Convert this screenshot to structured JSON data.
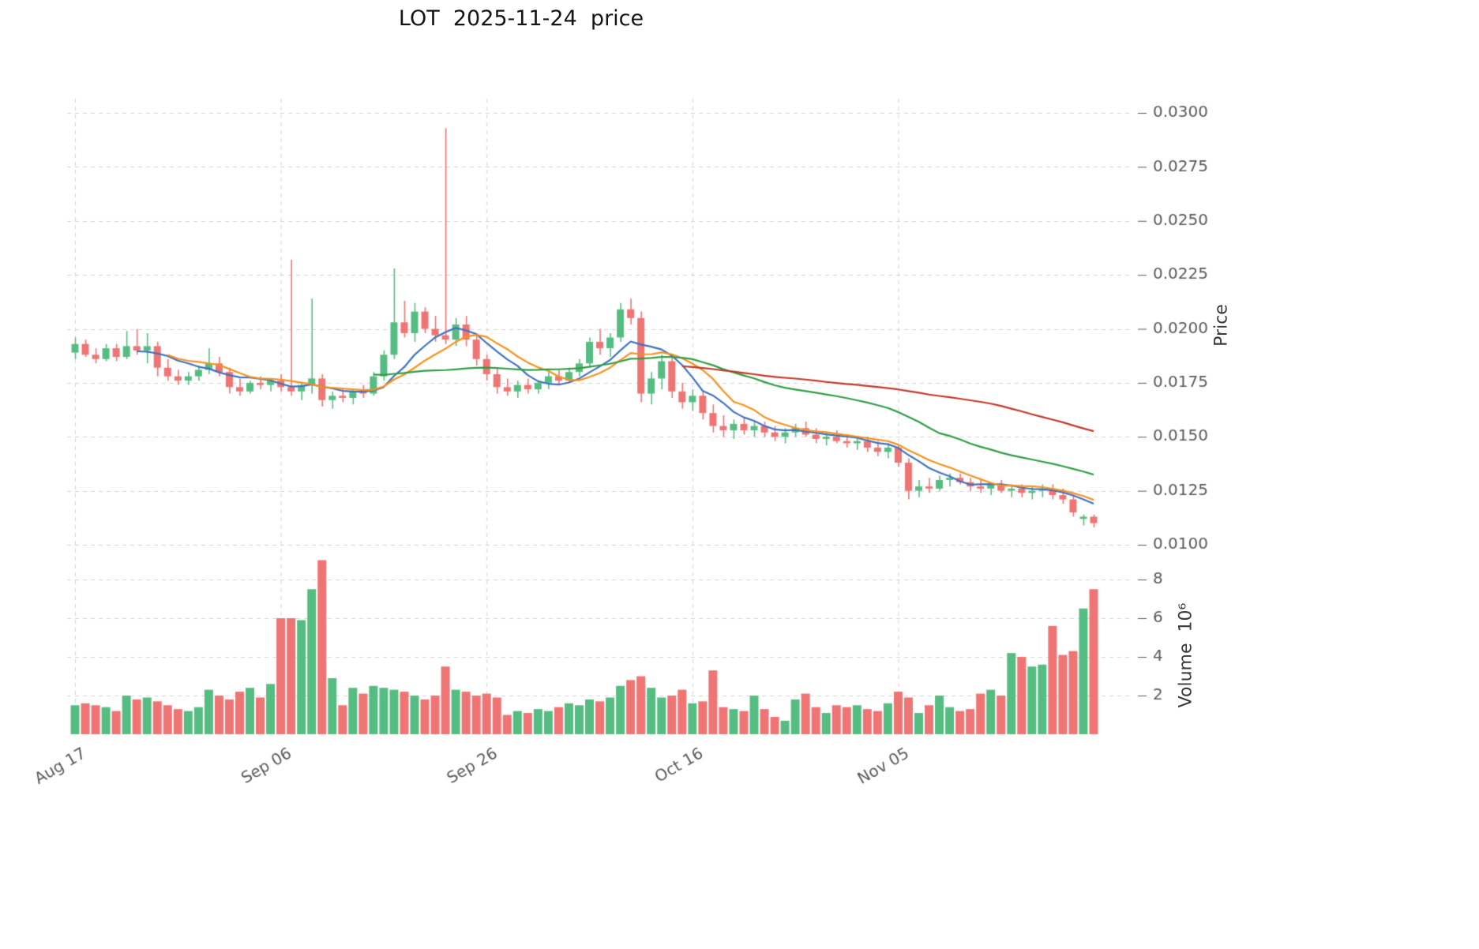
{
  "title": "LOT  2025-11-24  price",
  "axes": {
    "price_label": "Price",
    "volume_label": "Volume  10⁶"
  },
  "chart_data": {
    "type": "candlestick+volume",
    "title": "LOT  2025-11-24  price",
    "ylabel": "Price",
    "volume_label": "Volume 10^6",
    "ylim": [
      0.01,
      0.03
    ],
    "price_ticks": [
      0.01,
      0.0125,
      0.015,
      0.0175,
      0.02,
      0.0225,
      0.025,
      0.0275,
      0.03
    ],
    "volume_ticks": [
      2,
      4,
      6,
      8
    ],
    "volume_unit": 1000000,
    "grid": "dashed",
    "x_ticks": [
      {
        "index": 0,
        "label": "Aug 17"
      },
      {
        "index": 20,
        "label": "Sep 06"
      },
      {
        "index": 40,
        "label": "Sep 26"
      },
      {
        "index": 60,
        "label": "Oct 16"
      },
      {
        "index": 80,
        "label": "Nov 05"
      }
    ],
    "colors": {
      "up": "#56bd82",
      "down": "#ef7474",
      "ma_fast": "#3f72c0",
      "ma_mid": "#f5921e",
      "ma_slow": "#2f9e44",
      "ma_long": "#c0392b",
      "grid": "#d3d3d3",
      "tick_text": "#595959",
      "title_text": "#151515"
    },
    "moving_averages": [
      {
        "window": 7,
        "color_key": "ma_fast"
      },
      {
        "window": 10,
        "color_key": "ma_mid"
      },
      {
        "window": 30,
        "color_key": "ma_slow"
      },
      {
        "window": 60,
        "color_key": "ma_long"
      }
    ],
    "candles": [
      [
        "2025-08-17",
        0.0189,
        0.0196,
        0.0186,
        0.0193,
        1.5
      ],
      [
        "2025-08-18",
        0.0193,
        0.0195,
        0.0187,
        0.0188,
        1.6
      ],
      [
        "2025-08-19",
        0.0188,
        0.0191,
        0.0184,
        0.0186,
        1.5
      ],
      [
        "2025-08-20",
        0.0186,
        0.0193,
        0.0185,
        0.0191,
        1.4
      ],
      [
        "2025-08-21",
        0.0191,
        0.0193,
        0.0185,
        0.0187,
        1.2
      ],
      [
        "2025-08-22",
        0.0187,
        0.0199,
        0.0186,
        0.0192,
        2.0
      ],
      [
        "2025-08-23",
        0.0192,
        0.02,
        0.0188,
        0.019,
        1.8
      ],
      [
        "2025-08-24",
        0.019,
        0.0198,
        0.0184,
        0.0192,
        1.9
      ],
      [
        "2025-08-25",
        0.0192,
        0.0194,
        0.0178,
        0.0182,
        1.7
      ],
      [
        "2025-08-26",
        0.0182,
        0.0186,
        0.0176,
        0.0178,
        1.5
      ],
      [
        "2025-08-27",
        0.0178,
        0.0181,
        0.0174,
        0.0176,
        1.3
      ],
      [
        "2025-08-28",
        0.0176,
        0.018,
        0.0174,
        0.0178,
        1.2
      ],
      [
        "2025-08-29",
        0.0178,
        0.0183,
        0.0176,
        0.0181,
        1.4
      ],
      [
        "2025-08-30",
        0.0181,
        0.0191,
        0.0179,
        0.0184,
        2.3
      ],
      [
        "2025-08-31",
        0.0184,
        0.0187,
        0.0178,
        0.018,
        2.0
      ],
      [
        "2025-09-01",
        0.018,
        0.0182,
        0.017,
        0.0173,
        1.8
      ],
      [
        "2025-09-02",
        0.0173,
        0.0177,
        0.0169,
        0.0171,
        2.2
      ],
      [
        "2025-09-03",
        0.0171,
        0.0176,
        0.017,
        0.0175,
        2.4
      ],
      [
        "2025-09-04",
        0.0175,
        0.0178,
        0.0172,
        0.0174,
        1.9
      ],
      [
        "2025-09-05",
        0.0174,
        0.0177,
        0.0171,
        0.0176,
        2.6
      ],
      [
        "2025-09-06",
        0.0176,
        0.0179,
        0.0171,
        0.0173,
        6.0
      ],
      [
        "2025-09-07",
        0.0173,
        0.0232,
        0.0169,
        0.0171,
        6.0
      ],
      [
        "2025-09-08",
        0.0171,
        0.0175,
        0.0167,
        0.0174,
        5.9
      ],
      [
        "2025-09-09",
        0.0174,
        0.0214,
        0.017,
        0.0177,
        7.5
      ],
      [
        "2025-09-10",
        0.0177,
        0.0179,
        0.0164,
        0.0167,
        9.0
      ],
      [
        "2025-09-11",
        0.0167,
        0.0171,
        0.0163,
        0.0169,
        2.9
      ],
      [
        "2025-09-12",
        0.0169,
        0.0172,
        0.0166,
        0.0168,
        1.5
      ],
      [
        "2025-09-13",
        0.0168,
        0.0172,
        0.0165,
        0.0171,
        2.4
      ],
      [
        "2025-09-14",
        0.0171,
        0.0174,
        0.0168,
        0.017,
        2.1
      ],
      [
        "2025-09-15",
        0.017,
        0.018,
        0.0169,
        0.0178,
        2.5
      ],
      [
        "2025-09-16",
        0.0178,
        0.019,
        0.0176,
        0.0188,
        2.4
      ],
      [
        "2025-09-17",
        0.0188,
        0.0228,
        0.0186,
        0.0203,
        2.3
      ],
      [
        "2025-09-18",
        0.0203,
        0.0213,
        0.0196,
        0.0198,
        2.2
      ],
      [
        "2025-09-19",
        0.0198,
        0.0212,
        0.0194,
        0.0208,
        2.0
      ],
      [
        "2025-09-20",
        0.0208,
        0.021,
        0.0198,
        0.02,
        1.8
      ],
      [
        "2025-09-21",
        0.02,
        0.0206,
        0.0194,
        0.0197,
        2.0
      ],
      [
        "2025-09-22",
        0.0197,
        0.0293,
        0.0193,
        0.0195,
        3.5
      ],
      [
        "2025-09-23",
        0.0195,
        0.0205,
        0.0192,
        0.0202,
        2.3
      ],
      [
        "2025-09-24",
        0.0202,
        0.0206,
        0.0192,
        0.0195,
        2.2
      ],
      [
        "2025-09-25",
        0.0195,
        0.0198,
        0.0183,
        0.0186,
        2.0
      ],
      [
        "2025-09-26",
        0.0186,
        0.0188,
        0.0176,
        0.0179,
        2.1
      ],
      [
        "2025-09-27",
        0.0179,
        0.0182,
        0.017,
        0.0173,
        1.9
      ],
      [
        "2025-09-28",
        0.0173,
        0.0177,
        0.0169,
        0.0171,
        1.0
      ],
      [
        "2025-09-29",
        0.0171,
        0.0176,
        0.0168,
        0.0174,
        1.2
      ],
      [
        "2025-09-30",
        0.0174,
        0.0177,
        0.017,
        0.0172,
        1.1
      ],
      [
        "2025-10-01",
        0.0172,
        0.0176,
        0.017,
        0.0175,
        1.3
      ],
      [
        "2025-10-02",
        0.0175,
        0.018,
        0.0172,
        0.0178,
        1.2
      ],
      [
        "2025-10-03",
        0.0178,
        0.0181,
        0.0174,
        0.0176,
        1.4
      ],
      [
        "2025-10-04",
        0.0176,
        0.0182,
        0.0175,
        0.018,
        1.6
      ],
      [
        "2025-10-05",
        0.018,
        0.0186,
        0.0178,
        0.0184,
        1.5
      ],
      [
        "2025-10-06",
        0.0184,
        0.0196,
        0.0182,
        0.0194,
        1.8
      ],
      [
        "2025-10-07",
        0.0194,
        0.02,
        0.0188,
        0.0191,
        1.7
      ],
      [
        "2025-10-08",
        0.0191,
        0.0198,
        0.0187,
        0.0196,
        1.9
      ],
      [
        "2025-10-09",
        0.0196,
        0.0212,
        0.0194,
        0.0209,
        2.5
      ],
      [
        "2025-10-10",
        0.0209,
        0.0214,
        0.0202,
        0.0205,
        2.8
      ],
      [
        "2025-10-11",
        0.0205,
        0.0208,
        0.0166,
        0.017,
        3.0
      ],
      [
        "2025-10-12",
        0.017,
        0.018,
        0.0165,
        0.0177,
        2.4
      ],
      [
        "2025-10-13",
        0.0177,
        0.0188,
        0.0172,
        0.0185,
        1.9
      ],
      [
        "2025-10-14",
        0.0185,
        0.0187,
        0.0168,
        0.0171,
        2.0
      ],
      [
        "2025-10-15",
        0.0171,
        0.0175,
        0.0163,
        0.0166,
        2.3
      ],
      [
        "2025-10-16",
        0.0166,
        0.0172,
        0.0162,
        0.0169,
        1.6
      ],
      [
        "2025-10-17",
        0.0169,
        0.0171,
        0.0158,
        0.0161,
        1.7
      ],
      [
        "2025-10-18",
        0.0161,
        0.0165,
        0.0152,
        0.0155,
        3.3
      ],
      [
        "2025-10-19",
        0.0155,
        0.016,
        0.015,
        0.0153,
        1.4
      ],
      [
        "2025-10-20",
        0.0153,
        0.0158,
        0.0149,
        0.0156,
        1.3
      ],
      [
        "2025-10-21",
        0.0156,
        0.0159,
        0.0151,
        0.0153,
        1.2
      ],
      [
        "2025-10-22",
        0.0153,
        0.0157,
        0.015,
        0.0155,
        2.0
      ],
      [
        "2025-10-23",
        0.0155,
        0.0157,
        0.015,
        0.0152,
        1.3
      ],
      [
        "2025-10-24",
        0.0152,
        0.0155,
        0.0148,
        0.015,
        0.9
      ],
      [
        "2025-10-25",
        0.015,
        0.0154,
        0.0147,
        0.0152,
        0.7
      ],
      [
        "2025-10-26",
        0.0152,
        0.0156,
        0.015,
        0.0154,
        1.8
      ],
      [
        "2025-10-27",
        0.0154,
        0.0157,
        0.015,
        0.0151,
        2.1
      ],
      [
        "2025-10-28",
        0.0151,
        0.0154,
        0.0147,
        0.0149,
        1.4
      ],
      [
        "2025-10-29",
        0.0149,
        0.0152,
        0.0146,
        0.015,
        1.1
      ],
      [
        "2025-10-30",
        0.015,
        0.0153,
        0.0147,
        0.0148,
        1.5
      ],
      [
        "2025-10-31",
        0.0148,
        0.0151,
        0.0145,
        0.0147,
        1.4
      ],
      [
        "2025-11-01",
        0.0147,
        0.015,
        0.0144,
        0.0148,
        1.5
      ],
      [
        "2025-11-02",
        0.0148,
        0.015,
        0.0143,
        0.0145,
        1.3
      ],
      [
        "2025-11-03",
        0.0145,
        0.0148,
        0.0141,
        0.0143,
        1.2
      ],
      [
        "2025-11-04",
        0.0143,
        0.0147,
        0.014,
        0.0145,
        1.6
      ],
      [
        "2025-11-05",
        0.0145,
        0.0146,
        0.0136,
        0.0138,
        2.2
      ],
      [
        "2025-11-06",
        0.0138,
        0.014,
        0.0121,
        0.0125,
        1.9
      ],
      [
        "2025-11-07",
        0.0125,
        0.013,
        0.0122,
        0.0127,
        1.1
      ],
      [
        "2025-11-08",
        0.0127,
        0.0131,
        0.0124,
        0.0126,
        1.5
      ],
      [
        "2025-11-09",
        0.0126,
        0.0132,
        0.0125,
        0.013,
        2.0
      ],
      [
        "2025-11-10",
        0.013,
        0.0133,
        0.0127,
        0.0131,
        1.4
      ],
      [
        "2025-11-11",
        0.0131,
        0.0133,
        0.0128,
        0.0129,
        1.2
      ],
      [
        "2025-11-12",
        0.0129,
        0.0131,
        0.0125,
        0.0127,
        1.3
      ],
      [
        "2025-11-13",
        0.0127,
        0.013,
        0.0124,
        0.0126,
        2.1
      ],
      [
        "2025-11-14",
        0.0126,
        0.0129,
        0.0123,
        0.0128,
        2.3
      ],
      [
        "2025-11-15",
        0.0128,
        0.013,
        0.0124,
        0.0125,
        2.0
      ],
      [
        "2025-11-16",
        0.0125,
        0.0128,
        0.0122,
        0.0126,
        4.2
      ],
      [
        "2025-11-17",
        0.0126,
        0.0128,
        0.0122,
        0.0124,
        4.0
      ],
      [
        "2025-11-18",
        0.0124,
        0.0127,
        0.0121,
        0.0125,
        3.5
      ],
      [
        "2025-11-19",
        0.0125,
        0.0128,
        0.0122,
        0.0126,
        3.6
      ],
      [
        "2025-11-20",
        0.0126,
        0.0128,
        0.0121,
        0.0123,
        5.6
      ],
      [
        "2025-11-21",
        0.0123,
        0.0126,
        0.0119,
        0.0121,
        4.1
      ],
      [
        "2025-11-22",
        0.0121,
        0.0123,
        0.0113,
        0.0115,
        4.3
      ],
      [
        "2025-11-23",
        0.0112,
        0.0114,
        0.0109,
        0.0113,
        6.5
      ],
      [
        "2025-11-24",
        0.0113,
        0.0114,
        0.0108,
        0.011,
        7.5
      ]
    ]
  }
}
